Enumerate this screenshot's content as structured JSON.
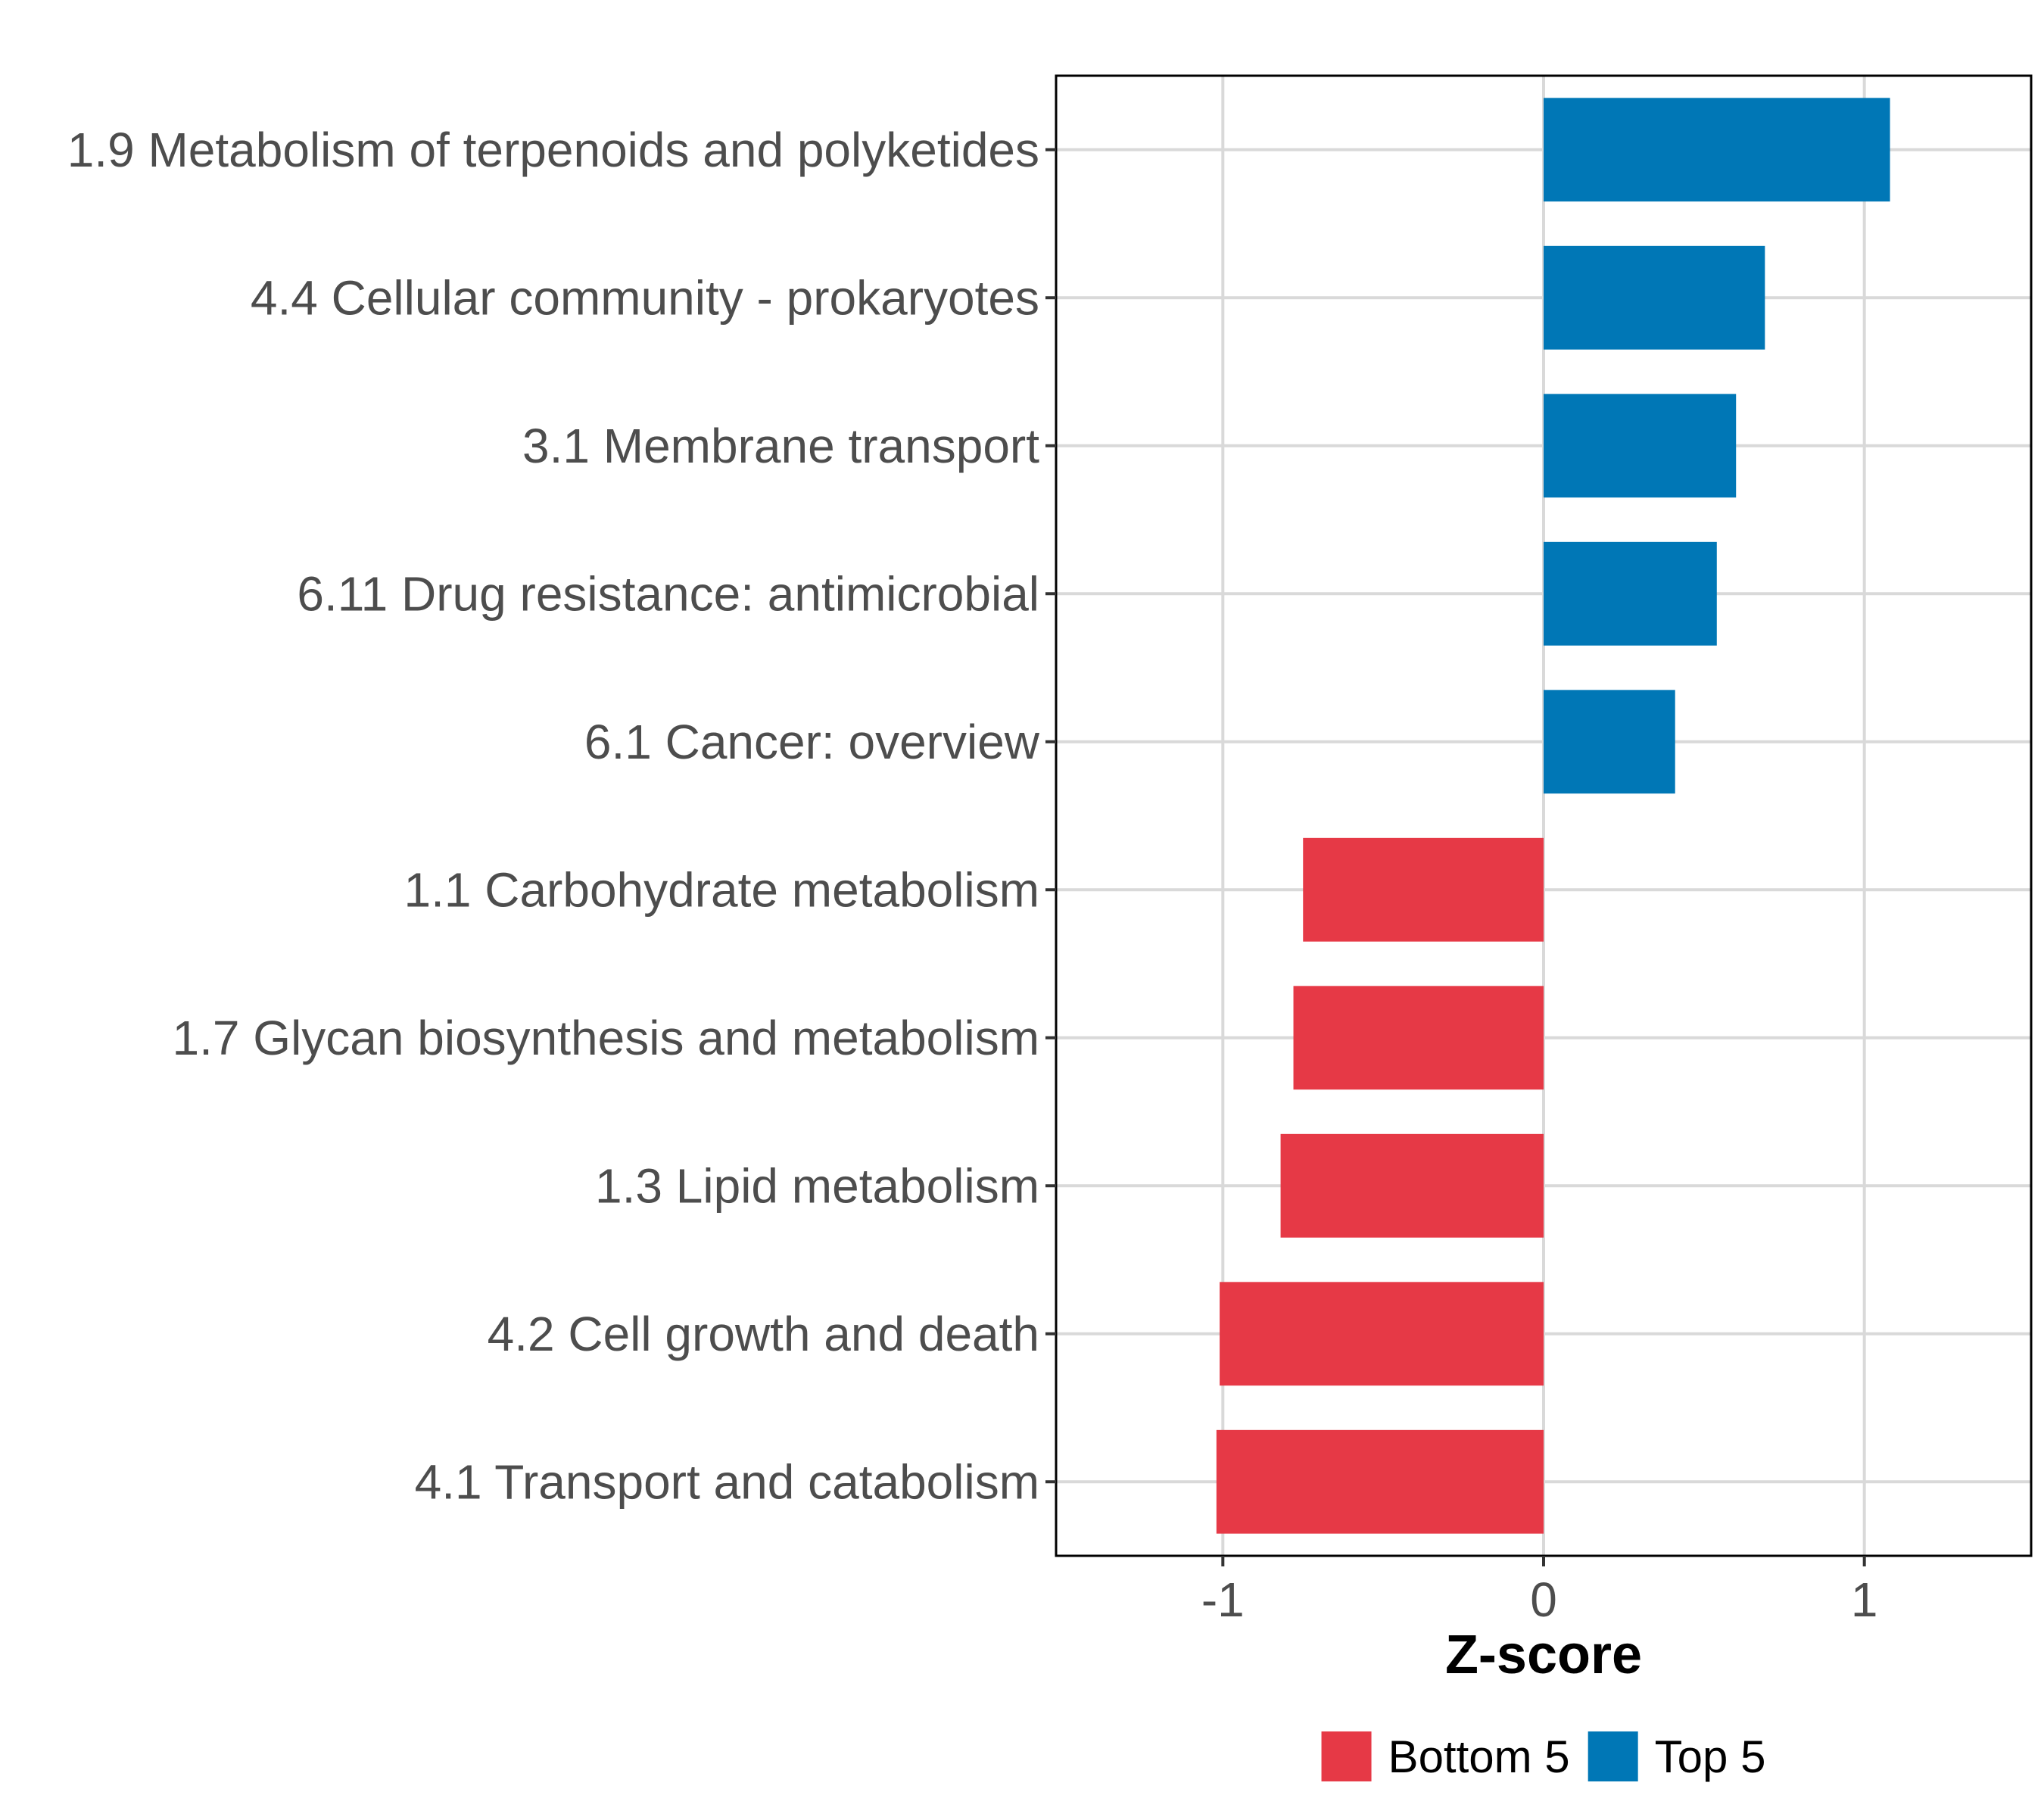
{
  "chart_data": {
    "type": "bar",
    "orientation": "horizontal",
    "title": "",
    "xlabel": "Z-score",
    "ylabel": "",
    "xlim": [
      -1.52,
      1.52
    ],
    "xticks": [
      -1,
      0,
      1
    ],
    "xtick_labels": [
      "-1",
      "0",
      "1"
    ],
    "grid": true,
    "legend_position": "bottom",
    "categories": [
      "1.9 Metabolism of terpenoids and polyketides",
      "4.4 Cellular community - prokaryotes",
      "3.1 Membrane transport",
      "6.11 Drug resistance: antimicrobial",
      "6.1 Cancer: overview",
      "1.1 Carbohydrate metabolism",
      "1.7 Glycan biosynthesis and metabolism",
      "1.3 Lipid metabolism",
      "4.2 Cell growth and death",
      "4.1 Transport and catabolism"
    ],
    "values": [
      1.08,
      0.69,
      0.6,
      0.54,
      0.41,
      -0.75,
      -0.78,
      -0.82,
      -1.01,
      -1.02
    ],
    "groups": [
      "Top 5",
      "Top 5",
      "Top 5",
      "Top 5",
      "Top 5",
      "Bottom 5",
      "Bottom 5",
      "Bottom 5",
      "Bottom 5",
      "Bottom 5"
    ],
    "legend": [
      {
        "name": "Bottom 5",
        "color": "#e63946"
      },
      {
        "name": "Top 5",
        "color": "#0077b6"
      }
    ]
  }
}
